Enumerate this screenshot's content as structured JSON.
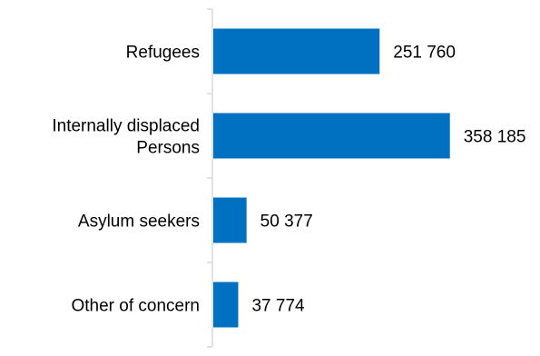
{
  "chart_data": {
    "type": "bar",
    "orientation": "horizontal",
    "categories": [
      [
        "Refugees"
      ],
      [
        "Internally displaced",
        "Persons"
      ],
      [
        "Asylum seekers"
      ],
      [
        "Other of concern"
      ]
    ],
    "values": [
      251760,
      358185,
      50377,
      37774
    ],
    "value_labels": [
      "251 760",
      "358 185",
      "50 377",
      "37 774"
    ],
    "xlim": [
      0,
      430000
    ],
    "grid": false,
    "legend": "none",
    "bar_color": "#0070C0",
    "axis_color": "#D9D9D9"
  }
}
